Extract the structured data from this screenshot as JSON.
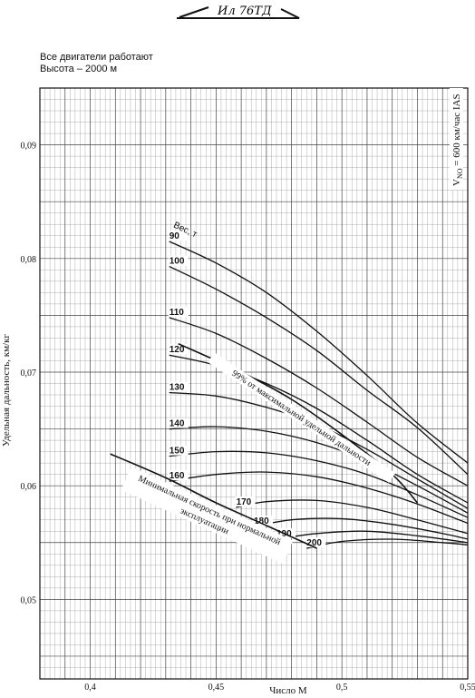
{
  "header": {
    "logo_text": "Ил 76ТД",
    "condition_1": "Все двигатели работают",
    "condition_2": "Высота – 2000 м"
  },
  "chart_data": {
    "type": "line",
    "title": "",
    "xlabel": "Число М",
    "ylabel": "Удельная дальность, км/кг",
    "xlim": [
      0.38,
      0.55
    ],
    "ylim": [
      0.043,
      0.095
    ],
    "x_ticks": [
      0.4,
      0.45,
      0.5,
      0.55
    ],
    "x_tick_labels": [
      "0,4",
      "0,45",
      "0,5",
      "0,55"
    ],
    "y_ticks": [
      0.05,
      0.06,
      0.07,
      0.08,
      0.09
    ],
    "y_tick_labels": [
      "0,05",
      "0,06",
      "0,07",
      "0,08",
      "0,09"
    ],
    "grid": true,
    "weight_label": "Вес, т",
    "series": [
      {
        "name": "90",
        "points": [
          [
            0.4314,
            0.0815
          ],
          [
            0.45,
            0.0796
          ],
          [
            0.47,
            0.077
          ],
          [
            0.49,
            0.0736
          ],
          [
            0.51,
            0.0697
          ],
          [
            0.53,
            0.0655
          ],
          [
            0.55,
            0.062
          ]
        ]
      },
      {
        "name": "100",
        "points": [
          [
            0.4314,
            0.0793
          ],
          [
            0.45,
            0.0773
          ],
          [
            0.47,
            0.0748
          ],
          [
            0.49,
            0.0719
          ],
          [
            0.51,
            0.0684
          ],
          [
            0.53,
            0.0651
          ],
          [
            0.55,
            0.061
          ]
        ]
      },
      {
        "name": "110",
        "points": [
          [
            0.4314,
            0.0748
          ],
          [
            0.45,
            0.0734
          ],
          [
            0.47,
            0.0712
          ],
          [
            0.49,
            0.0686
          ],
          [
            0.51,
            0.0656
          ],
          [
            0.53,
            0.0625
          ],
          [
            0.55,
            0.06
          ]
        ]
      },
      {
        "name": "120",
        "points": [
          [
            0.4314,
            0.0715
          ],
          [
            0.45,
            0.0706
          ],
          [
            0.47,
            0.069
          ],
          [
            0.49,
            0.0668
          ],
          [
            0.51,
            0.064
          ],
          [
            0.53,
            0.061
          ],
          [
            0.55,
            0.0585
          ]
        ]
      },
      {
        "name": "130",
        "points": [
          [
            0.4314,
            0.0682
          ],
          [
            0.45,
            0.0679
          ],
          [
            0.47,
            0.0669
          ],
          [
            0.49,
            0.0654
          ],
          [
            0.51,
            0.0632
          ],
          [
            0.53,
            0.0606
          ],
          [
            0.55,
            0.058
          ]
        ]
      },
      {
        "name": "140",
        "points": [
          [
            0.4314,
            0.065
          ],
          [
            0.45,
            0.0652
          ],
          [
            0.47,
            0.0648
          ],
          [
            0.49,
            0.0638
          ],
          [
            0.51,
            0.0622
          ],
          [
            0.53,
            0.06
          ],
          [
            0.55,
            0.0576
          ]
        ]
      },
      {
        "name": "150",
        "points": [
          [
            0.4314,
            0.0626
          ],
          [
            0.45,
            0.063
          ],
          [
            0.47,
            0.0629
          ],
          [
            0.49,
            0.0622
          ],
          [
            0.51,
            0.061
          ],
          [
            0.53,
            0.0592
          ],
          [
            0.55,
            0.0572
          ]
        ]
      },
      {
        "name": "160",
        "points": [
          [
            0.4314,
            0.0604
          ],
          [
            0.45,
            0.061
          ],
          [
            0.47,
            0.0612
          ],
          [
            0.49,
            0.0608
          ],
          [
            0.51,
            0.0598
          ],
          [
            0.53,
            0.0584
          ],
          [
            0.55,
            0.0567
          ]
        ]
      },
      {
        "name": "170",
        "points": [
          [
            0.458,
            0.0581
          ],
          [
            0.47,
            0.0586
          ],
          [
            0.49,
            0.0587
          ],
          [
            0.51,
            0.0581
          ],
          [
            0.53,
            0.057
          ],
          [
            0.55,
            0.0558
          ]
        ]
      },
      {
        "name": "180",
        "points": [
          [
            0.465,
            0.0564
          ],
          [
            0.48,
            0.057
          ],
          [
            0.5,
            0.0571
          ],
          [
            0.52,
            0.0566
          ],
          [
            0.54,
            0.0558
          ],
          [
            0.55,
            0.0553
          ]
        ]
      },
      {
        "name": "190",
        "points": [
          [
            0.474,
            0.0553
          ],
          [
            0.49,
            0.0558
          ],
          [
            0.51,
            0.056
          ],
          [
            0.53,
            0.0556
          ],
          [
            0.55,
            0.055
          ]
        ]
      },
      {
        "name": "200",
        "points": [
          [
            0.486,
            0.0545
          ],
          [
            0.5,
            0.0551
          ],
          [
            0.52,
            0.0553
          ],
          [
            0.54,
            0.055
          ],
          [
            0.55,
            0.0548
          ]
        ]
      }
    ],
    "boundary_lines": [
      {
        "label": "99% от максимальной удельной дальности",
        "points": [
          [
            0.435,
            0.0725
          ],
          [
            0.46,
            0.07
          ],
          [
            0.48,
            0.0676
          ],
          [
            0.5,
            0.0645
          ],
          [
            0.52,
            0.061
          ],
          [
            0.53,
            0.0585
          ]
        ]
      },
      {
        "label": "Минимальная скорость при нормальной эксплуатации",
        "points": [
          [
            0.408,
            0.0628
          ],
          [
            0.43,
            0.0607
          ],
          [
            0.45,
            0.0585
          ],
          [
            0.47,
            0.0565
          ],
          [
            0.49,
            0.0545
          ]
        ]
      }
    ],
    "annotations": {
      "vno": "V",
      "vno_sub": "NO",
      "vno_rest": " = 600 км/час IAS"
    }
  }
}
